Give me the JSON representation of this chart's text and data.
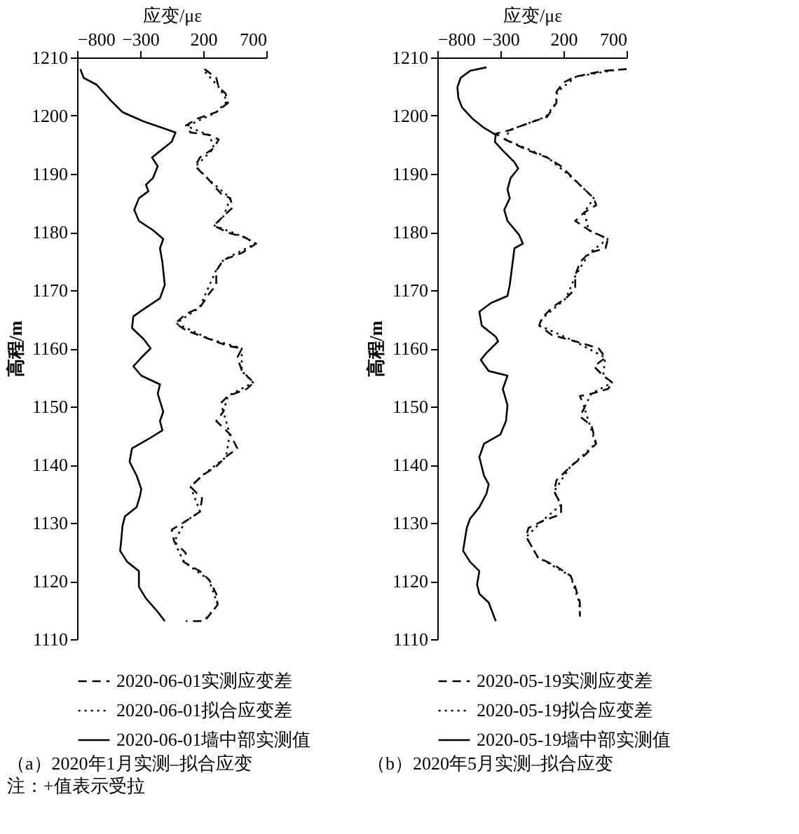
{
  "chart_data": [
    {
      "type": "line",
      "title": "（a）2020年1月实测–拟合应变",
      "xlabel": "应变/με",
      "ylabel": "高程/m",
      "annotations": [
        "注：+值表示受拉"
      ],
      "xlim": [
        -800,
        700
      ],
      "xticks": [
        -800,
        -300,
        200,
        700
      ],
      "ylim": [
        1110,
        1210
      ],
      "yticks": [
        1110,
        1120,
        1130,
        1140,
        1150,
        1160,
        1170,
        1180,
        1190,
        1200,
        1210
      ],
      "grid": false,
      "legend": "bottom",
      "series": [
        {
          "name": "2020-06-01实测应变差",
          "color": "#000000",
          "line_style": "dashed",
          "x": [
            210,
            303,
            322,
            377,
            396,
            303,
            154,
            62,
            99,
            247,
            322,
            284,
            173,
            136,
            247,
            340,
            414,
            433,
            359,
            284,
            396,
            526,
            619,
            507,
            359,
            303,
            303,
            247,
            173,
            62,
            -20,
            62,
            247,
            396,
            507,
            470,
            507,
            600,
            544,
            396,
            340,
            359,
            303,
            414,
            470,
            377,
            303,
            191,
            99,
            191,
            173,
            62,
            -50,
            -31,
            62,
            43,
            173,
            247,
            303,
            314,
            210,
            62
          ],
          "values": [
            1208,
            1206.5,
            1204.9,
            1203.8,
            1202.2,
            1200.6,
            1199.5,
            1198.3,
            1197.1,
            1196.7,
            1195.9,
            1194.4,
            1192.8,
            1191.3,
            1188.9,
            1186.6,
            1185.8,
            1184.2,
            1182.7,
            1181.1,
            1179.9,
            1179.1,
            1178,
            1176.4,
            1175.2,
            1173.3,
            1170.9,
            1169.4,
            1167,
            1165.9,
            1164.3,
            1163.1,
            1161.6,
            1160.4,
            1160,
            1158.4,
            1156.1,
            1154.1,
            1153,
            1151.8,
            1150.6,
            1149.1,
            1147.5,
            1145.2,
            1142.8,
            1141.3,
            1139.7,
            1138.1,
            1136.2,
            1134.2,
            1131.9,
            1130.3,
            1128.8,
            1126.8,
            1124.8,
            1123.3,
            1121.7,
            1120.2,
            1117.8,
            1115.9,
            1113.1,
            1113.1
          ]
        },
        {
          "name": "2020-06-01拟合应变差",
          "color": "#000000",
          "line_style": "dotted",
          "x": [
            215,
            320,
            390,
            300,
            70,
            250,
            285,
            140,
            250,
            415,
            360,
            290,
            525,
            615,
            360,
            300,
            170,
            -15,
            250,
            505,
            505,
            595,
            395,
            360,
            410,
            380,
            190,
            100,
            175,
            60,
            -30,
            45,
            245,
            315,
            215
          ],
          "values": [
            1207.5,
            1205,
            1202.5,
            1200.5,
            1198.2,
            1196.6,
            1194.4,
            1191.3,
            1188.9,
            1185.8,
            1182.7,
            1181.1,
            1179.1,
            1178,
            1175.2,
            1173.3,
            1167,
            1164.3,
            1161.6,
            1160,
            1156.1,
            1154.1,
            1151.8,
            1149.1,
            1145.2,
            1141.3,
            1138.1,
            1136.2,
            1131.9,
            1130.3,
            1126.8,
            1123.3,
            1120.2,
            1115.9,
            1113.4
          ]
        },
        {
          "name": "2020-06-01墙中部实测值",
          "color": "#000000",
          "line_style": "solid",
          "x": [
            -774,
            -748,
            -644,
            -533,
            -440,
            -273,
            -124,
            -20,
            -50,
            -161,
            -206,
            -161,
            -198,
            -254,
            -235,
            -310,
            -347,
            -310,
            -198,
            -117,
            -143,
            -124,
            -105,
            -143,
            -254,
            -354,
            -365,
            -273,
            -217,
            -291,
            -354,
            -291,
            -143,
            -161,
            -117,
            -143,
            -124,
            -235,
            -365,
            -384,
            -328,
            -291,
            -302,
            -328,
            -421,
            -440,
            -451,
            -459,
            -403,
            -310,
            -310,
            -254,
            -161,
            -105
          ],
          "values": [
            1208,
            1206.5,
            1205.3,
            1202.6,
            1200.6,
            1199,
            1197.9,
            1197.1,
            1195.5,
            1193.6,
            1192.8,
            1191.3,
            1189.3,
            1188.1,
            1187,
            1185.8,
            1183.8,
            1181.9,
            1180.3,
            1178.8,
            1177.2,
            1174.8,
            1170.9,
            1168.6,
            1167,
            1165.5,
            1163.5,
            1161.6,
            1160,
            1158.4,
            1156.9,
            1155.3,
            1153.8,
            1152.2,
            1149.1,
            1147.5,
            1145.9,
            1144.4,
            1142.8,
            1140.5,
            1138.1,
            1135.8,
            1134.6,
            1132.7,
            1131.1,
            1129.5,
            1126.8,
            1125.2,
            1123.3,
            1121.7,
            1119,
            1117,
            1114.7,
            1113.1
          ]
        }
      ]
    },
    {
      "type": "line",
      "title": "（b）2020年5月实测–拟合应变",
      "xlabel": "应变/με",
      "ylabel": "高程/m",
      "xlim": [
        -800,
        700
      ],
      "xticks": [
        -800,
        -300,
        200,
        700
      ],
      "ylim": [
        1110,
        1210
      ],
      "yticks": [
        1110,
        1120,
        1130,
        1140,
        1150,
        1160,
        1170,
        1180,
        1190,
        1200,
        1210
      ],
      "grid": false,
      "legend": "bottom",
      "series": [
        {
          "name": "2020-05-19实测应变差",
          "color": "#000000",
          "line_style": "dashed",
          "x": [
            700,
            515,
            293,
            200,
            144,
            144,
            70,
            -78,
            -226,
            -337,
            -263,
            -78,
            70,
            181,
            293,
            367,
            441,
            459,
            367,
            293,
            404,
            552,
            533,
            404,
            330,
            293,
            293,
            219,
            107,
            26,
            7,
            107,
            293,
            478,
            533,
            441,
            515,
            589,
            552,
            422,
            330,
            367,
            330,
            422,
            459,
            367,
            256,
            144,
            126,
            181,
            181,
            33,
            -78,
            -96,
            -4,
            144,
            256,
            293,
            330,
            330
          ],
          "values": [
            1208,
            1207.7,
            1206.7,
            1205.7,
            1204.1,
            1202.2,
            1199.8,
            1198.7,
            1197.5,
            1196.9,
            1195.9,
            1194,
            1192.8,
            1191.3,
            1188.9,
            1187.3,
            1185.8,
            1184.6,
            1183.4,
            1181.9,
            1180.3,
            1178.8,
            1177.2,
            1176.4,
            1174.8,
            1172.5,
            1170.2,
            1168.6,
            1167,
            1165.1,
            1163.9,
            1162.3,
            1161.2,
            1160,
            1158.4,
            1156.9,
            1155.3,
            1154.1,
            1153,
            1152.2,
            1151.8,
            1149.8,
            1148.3,
            1146.7,
            1143.6,
            1141.6,
            1139.7,
            1137.3,
            1135.4,
            1133.1,
            1131.5,
            1130.3,
            1129.1,
            1127.6,
            1124.1,
            1122.5,
            1120.9,
            1119,
            1116.3,
            1113.9
          ]
        },
        {
          "name": "2020-05-19拟合应变差",
          "color": "#000000",
          "line_style": "dotted",
          "x": [
            600,
            300,
            150,
            140,
            60,
            -230,
            -260,
            75,
            290,
            440,
            365,
            400,
            550,
            405,
            295,
            220,
            30,
            10,
            290,
            530,
            515,
            585,
            420,
            365,
            455,
            255,
            125,
            180,
            30,
            -95,
            -5,
            255,
            325,
            330
          ],
          "values": [
            1207.8,
            1206.7,
            1204.1,
            1202.2,
            1199.8,
            1197.5,
            1195.9,
            1192.8,
            1188.9,
            1185.8,
            1183.4,
            1180.3,
            1178.8,
            1176.4,
            1172.5,
            1168.6,
            1165.1,
            1163.9,
            1161.2,
            1158.4,
            1155.3,
            1154.1,
            1152.2,
            1149.8,
            1143.6,
            1139.7,
            1135.4,
            1133.1,
            1130.3,
            1127.6,
            1124.1,
            1120.9,
            1116.3,
            1114.2
          ]
        },
        {
          "name": "2020-05-19墙中部实测值",
          "color": "#000000",
          "line_style": "solid",
          "x": [
            -411,
            -541,
            -615,
            -641,
            -633,
            -604,
            -522,
            -430,
            -337,
            -344,
            -281,
            -189,
            -159,
            -219,
            -244,
            -226,
            -270,
            -244,
            -152,
            -122,
            -189,
            -207,
            -226,
            -244,
            -374,
            -467,
            -448,
            -337,
            -318,
            -411,
            -456,
            -393,
            -244,
            -281,
            -244,
            -256,
            -300,
            -430,
            -467,
            -430,
            -393,
            -411,
            -467,
            -541,
            -567,
            -596,
            -541,
            -467,
            -485,
            -467,
            -393,
            -337
          ],
          "values": [
            1208.3,
            1207.7,
            1206.5,
            1204.9,
            1203,
            1201.4,
            1199.5,
            1197.9,
            1196.7,
            1195.5,
            1194,
            1192,
            1190.9,
            1189.3,
            1187.3,
            1185.8,
            1183.8,
            1181.9,
            1179.5,
            1178,
            1177.2,
            1174.1,
            1170.9,
            1169,
            1167.8,
            1166.3,
            1163.9,
            1162,
            1161.2,
            1159.2,
            1158,
            1156.1,
            1155.3,
            1153,
            1150.2,
            1147.5,
            1145.2,
            1143.6,
            1141.3,
            1138.1,
            1136.6,
            1135,
            1132.7,
            1130.7,
            1129.1,
            1125.2,
            1123.3,
            1121.7,
            1119.4,
            1117.8,
            1116.3,
            1113.1
          ]
        }
      ]
    }
  ]
}
